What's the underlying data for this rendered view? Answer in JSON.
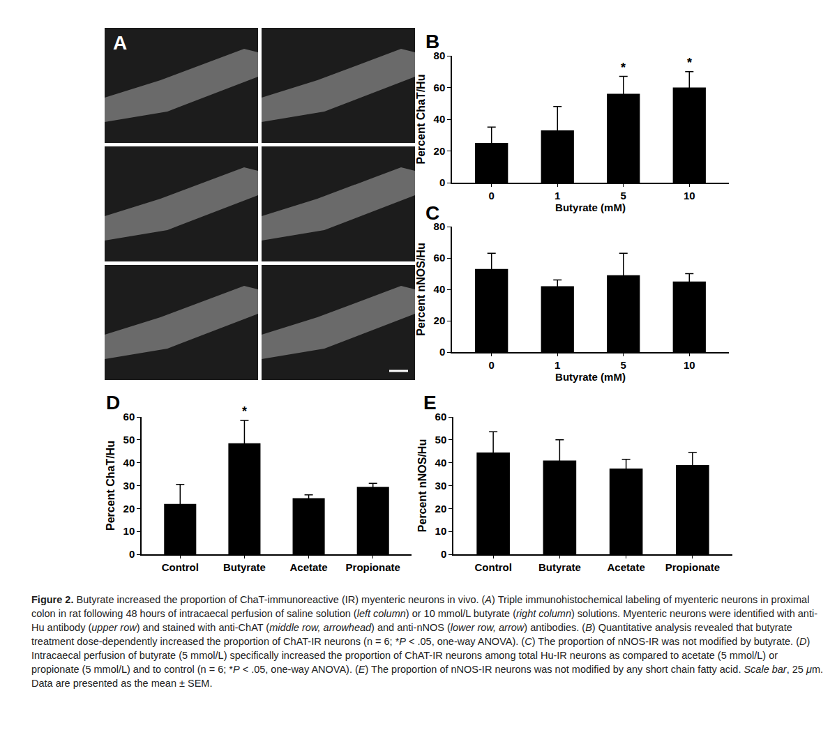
{
  "chart_data": [
    {
      "type": "bar",
      "panel": "B",
      "categories": [
        "0",
        "1",
        "5",
        "10"
      ],
      "values": [
        25,
        33,
        56,
        60
      ],
      "errors": [
        10,
        15,
        11,
        10
      ],
      "significance": [
        null,
        null,
        "*",
        "*"
      ],
      "color": "#000000",
      "xlabel": "Butyrate (mM)",
      "ylabel": "Percent ChaT/Hu",
      "ylim": [
        0,
        80
      ],
      "yticks": [
        0,
        20,
        40,
        60,
        80
      ],
      "grid": false
    },
    {
      "type": "bar",
      "panel": "C",
      "categories": [
        "0",
        "1",
        "5",
        "10"
      ],
      "values": [
        53,
        42,
        49,
        45
      ],
      "errors": [
        10,
        4,
        14,
        5
      ],
      "significance": [
        null,
        null,
        null,
        null
      ],
      "color": "#000000",
      "xlabel": "Butyrate (mM)",
      "ylabel": "Percent nNOS/Hu",
      "ylim": [
        0,
        80
      ],
      "yticks": [
        0,
        20,
        40,
        60,
        80
      ],
      "grid": false
    },
    {
      "type": "bar",
      "panel": "D",
      "categories": [
        "Control",
        "Butyrate",
        "Acetate",
        "Propionate"
      ],
      "values": [
        22,
        48.5,
        24.5,
        29.5
      ],
      "errors": [
        8.5,
        10,
        1.5,
        1.5
      ],
      "significance": [
        null,
        "*",
        null,
        null
      ],
      "color": "#000000",
      "ylabel": "Percent ChaT/Hu",
      "ylim": [
        0,
        60
      ],
      "yticks": [
        0,
        10,
        20,
        30,
        40,
        50,
        60
      ],
      "grid": false
    },
    {
      "type": "bar",
      "panel": "E",
      "categories": [
        "Control",
        "Butyrate",
        "Acetate",
        "Propionate"
      ],
      "values": [
        44.5,
        41,
        37.5,
        39
      ],
      "errors": [
        9,
        9,
        4,
        5.5
      ],
      "significance": [
        null,
        null,
        null,
        null
      ],
      "color": "#000000",
      "ylabel": "Percent nNOS/Hu",
      "ylim": [
        0,
        60
      ],
      "yticks": [
        0,
        10,
        20,
        30,
        40,
        50,
        60
      ],
      "grid": false
    }
  ],
  "micrograph_panel": {
    "panel": "A"
  },
  "caption": [
    {
      "text": "Figure 2.",
      "bold": true
    },
    {
      "text": " Butyrate increased the proportion of ChaT-immunoreactive (IR) myenteric neurons in vivo. ("
    },
    {
      "text": "A",
      "italic": true
    },
    {
      "text": ") Triple immunohistochemical labeling of myenteric neurons in proximal colon in rat following 48 hours of intracaecal perfusion of saline solution ("
    },
    {
      "text": "left column",
      "italic": true
    },
    {
      "text": ") or 10 mmol/L butyrate ("
    },
    {
      "text": "right column",
      "italic": true
    },
    {
      "text": ") solutions. Myenteric neurons were identified with anti-Hu antibody ("
    },
    {
      "text": "upper row",
      "italic": true
    },
    {
      "text": ") and stained with anti-ChAT ("
    },
    {
      "text": "middle row, arrowhead",
      "italic": true
    },
    {
      "text": ") and anti-nNOS ("
    },
    {
      "text": "lower row, arrow",
      "italic": true
    },
    {
      "text": ") antibodies. ("
    },
    {
      "text": "B",
      "italic": true
    },
    {
      "text": ") Quantitative analysis revealed that butyrate treatment dose-dependently increased the proportion of ChAT-IR neurons (n = 6; *"
    },
    {
      "text": "P",
      "italic": true
    },
    {
      "text": " < .05, one-way ANOVA). ("
    },
    {
      "text": "C",
      "italic": true
    },
    {
      "text": ") The proportion of nNOS-IR was not modified by butyrate. ("
    },
    {
      "text": "D",
      "italic": true
    },
    {
      "text": ") Intracaecal perfusion of butyrate (5 mmol/L) specifically increased the proportion of ChAT-IR neurons among total Hu-IR neurons as compared to acetate (5 mmol/L) or propionate (5 mmol/L) and to control (n = 6; *"
    },
    {
      "text": "P",
      "italic": true
    },
    {
      "text": " < .05, one-way ANOVA). ("
    },
    {
      "text": "E",
      "italic": true
    },
    {
      "text": ") The proportion of nNOS-IR neurons was not modified by any short chain fatty acid. "
    },
    {
      "text": "Scale bar",
      "italic": true
    },
    {
      "text": ", 25 "
    },
    {
      "text": "μ",
      "italic": true
    },
    {
      "text": "m. Data are presented as the mean ± SEM."
    }
  ]
}
